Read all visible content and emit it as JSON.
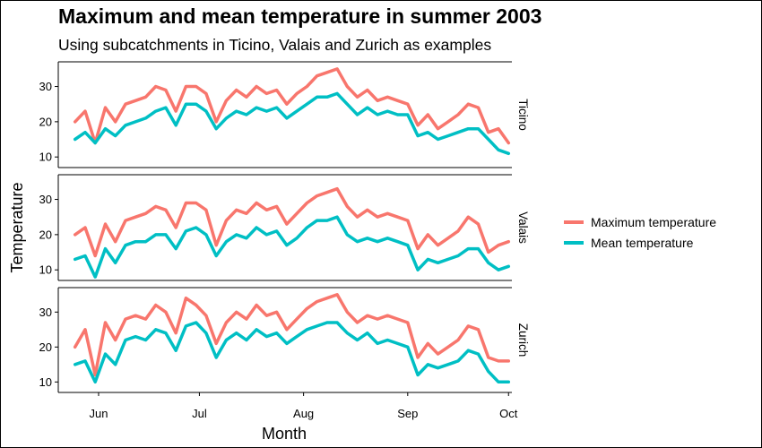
{
  "chart_data": {
    "type": "line",
    "title": "Maximum and mean temperature in summer 2003",
    "subtitle": "Using subcatchments in Ticino, Valais and Zurich as examples",
    "xlabel": "Month",
    "ylabel": "Temperature",
    "x_ticks": [
      "Jun",
      "Jul",
      "Aug",
      "Sep",
      "Oct"
    ],
    "x_tick_dates": [
      "2003-06-01",
      "2003-07-01",
      "2003-08-01",
      "2003-09-01",
      "2003-10-01"
    ],
    "xlim": [
      "2003-05-20",
      "2003-10-02"
    ],
    "ylim": [
      7,
      37
    ],
    "y_ticks": [
      10,
      20,
      30
    ],
    "grid": false,
    "legend_position": "right",
    "series_names": [
      "Maximum temperature",
      "Mean temperature"
    ],
    "colors": {
      "max": "#F8766D",
      "mean": "#00BFC4"
    },
    "panels": [
      {
        "name": "Ticino",
        "dates": [
          "2003-05-25",
          "2003-05-28",
          "2003-05-31",
          "2003-06-03",
          "2003-06-06",
          "2003-06-09",
          "2003-06-12",
          "2003-06-15",
          "2003-06-18",
          "2003-06-21",
          "2003-06-24",
          "2003-06-27",
          "2003-06-30",
          "2003-07-03",
          "2003-07-06",
          "2003-07-09",
          "2003-07-12",
          "2003-07-15",
          "2003-07-18",
          "2003-07-21",
          "2003-07-24",
          "2003-07-27",
          "2003-07-30",
          "2003-08-02",
          "2003-08-05",
          "2003-08-08",
          "2003-08-11",
          "2003-08-14",
          "2003-08-17",
          "2003-08-20",
          "2003-08-23",
          "2003-08-26",
          "2003-08-29",
          "2003-09-01",
          "2003-09-04",
          "2003-09-07",
          "2003-09-10",
          "2003-09-13",
          "2003-09-16",
          "2003-09-19",
          "2003-09-22",
          "2003-09-25",
          "2003-09-28",
          "2003-10-01"
        ],
        "max": [
          20,
          23,
          14,
          24,
          20,
          25,
          26,
          27,
          30,
          29,
          23,
          30,
          30,
          28,
          20,
          26,
          29,
          27,
          30,
          28,
          29,
          25,
          28,
          30,
          33,
          34,
          35,
          30,
          27,
          29,
          26,
          27,
          26,
          25,
          19,
          22,
          18,
          20,
          22,
          25,
          24,
          17,
          18,
          14
        ],
        "mean": [
          15,
          17,
          14,
          18,
          16,
          19,
          20,
          21,
          23,
          24,
          19,
          25,
          25,
          23,
          18,
          21,
          23,
          22,
          24,
          23,
          24,
          21,
          23,
          25,
          27,
          27,
          28,
          25,
          22,
          24,
          22,
          23,
          22,
          22,
          16,
          17,
          15,
          16,
          17,
          18,
          18,
          15,
          12,
          11
        ]
      },
      {
        "name": "Valais",
        "dates": [
          "2003-05-25",
          "2003-05-28",
          "2003-05-31",
          "2003-06-03",
          "2003-06-06",
          "2003-06-09",
          "2003-06-12",
          "2003-06-15",
          "2003-06-18",
          "2003-06-21",
          "2003-06-24",
          "2003-06-27",
          "2003-06-30",
          "2003-07-03",
          "2003-07-06",
          "2003-07-09",
          "2003-07-12",
          "2003-07-15",
          "2003-07-18",
          "2003-07-21",
          "2003-07-24",
          "2003-07-27",
          "2003-07-30",
          "2003-08-02",
          "2003-08-05",
          "2003-08-08",
          "2003-08-11",
          "2003-08-14",
          "2003-08-17",
          "2003-08-20",
          "2003-08-23",
          "2003-08-26",
          "2003-08-29",
          "2003-09-01",
          "2003-09-04",
          "2003-09-07",
          "2003-09-10",
          "2003-09-13",
          "2003-09-16",
          "2003-09-19",
          "2003-09-22",
          "2003-09-25",
          "2003-09-28",
          "2003-10-01"
        ],
        "max": [
          20,
          22,
          14,
          23,
          18,
          24,
          25,
          26,
          28,
          27,
          22,
          29,
          29,
          27,
          17,
          24,
          27,
          26,
          29,
          27,
          28,
          23,
          26,
          29,
          31,
          32,
          33,
          28,
          25,
          27,
          25,
          26,
          25,
          24,
          16,
          20,
          17,
          19,
          21,
          25,
          23,
          15,
          17,
          18
        ],
        "mean": [
          13,
          14,
          8,
          16,
          12,
          17,
          18,
          18,
          20,
          20,
          16,
          21,
          22,
          20,
          14,
          18,
          20,
          19,
          22,
          20,
          21,
          17,
          19,
          22,
          24,
          24,
          25,
          20,
          18,
          19,
          18,
          19,
          18,
          17,
          10,
          13,
          12,
          13,
          14,
          16,
          16,
          12,
          10,
          11
        ]
      },
      {
        "name": "Zurich",
        "dates": [
          "2003-05-25",
          "2003-05-28",
          "2003-05-31",
          "2003-06-03",
          "2003-06-06",
          "2003-06-09",
          "2003-06-12",
          "2003-06-15",
          "2003-06-18",
          "2003-06-21",
          "2003-06-24",
          "2003-06-27",
          "2003-06-30",
          "2003-07-03",
          "2003-07-06",
          "2003-07-09",
          "2003-07-12",
          "2003-07-15",
          "2003-07-18",
          "2003-07-21",
          "2003-07-24",
          "2003-07-27",
          "2003-07-30",
          "2003-08-02",
          "2003-08-05",
          "2003-08-08",
          "2003-08-11",
          "2003-08-14",
          "2003-08-17",
          "2003-08-20",
          "2003-08-23",
          "2003-08-26",
          "2003-08-29",
          "2003-09-01",
          "2003-09-04",
          "2003-09-07",
          "2003-09-10",
          "2003-09-13",
          "2003-09-16",
          "2003-09-19",
          "2003-09-22",
          "2003-09-25",
          "2003-09-28",
          "2003-10-01"
        ],
        "max": [
          20,
          25,
          12,
          27,
          22,
          28,
          29,
          28,
          32,
          30,
          24,
          34,
          32,
          29,
          21,
          27,
          30,
          28,
          32,
          29,
          30,
          25,
          28,
          31,
          33,
          34,
          35,
          30,
          27,
          29,
          28,
          29,
          28,
          27,
          17,
          21,
          18,
          20,
          22,
          26,
          25,
          17,
          16,
          16
        ],
        "mean": [
          15,
          16,
          10,
          18,
          15,
          22,
          23,
          22,
          25,
          24,
          19,
          26,
          27,
          24,
          17,
          22,
          24,
          22,
          25,
          23,
          24,
          21,
          23,
          25,
          26,
          27,
          27,
          24,
          22,
          24,
          21,
          22,
          21,
          20,
          12,
          15,
          14,
          15,
          16,
          19,
          18,
          13,
          10,
          10
        ]
      }
    ]
  }
}
